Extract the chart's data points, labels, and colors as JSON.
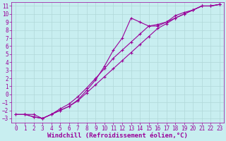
{
  "title": "",
  "xlabel": "Windchill (Refroidissement éolien,°C)",
  "ylabel": "",
  "bg_color": "#c8eef0",
  "grid_color": "#b0d8d8",
  "line_color": "#990099",
  "xlim": [
    -0.5,
    23.5
  ],
  "ylim": [
    -3.5,
    11.5
  ],
  "yticks": [
    -3,
    -2,
    -1,
    0,
    1,
    2,
    3,
    4,
    5,
    6,
    7,
    8,
    9,
    10,
    11
  ],
  "xticks": [
    0,
    1,
    2,
    3,
    4,
    5,
    6,
    7,
    8,
    9,
    10,
    11,
    12,
    13,
    14,
    15,
    16,
    17,
    18,
    19,
    20,
    21,
    22,
    23
  ],
  "line1_x": [
    0,
    1,
    2,
    3,
    4,
    5,
    6,
    7,
    8,
    9,
    10,
    11,
    12,
    13,
    14,
    15,
    16,
    17,
    18,
    19,
    20,
    21,
    22,
    23
  ],
  "line1_y": [
    -2.5,
    -2.5,
    -2.8,
    -3.0,
    -2.5,
    -2.0,
    -1.5,
    -0.8,
    0.2,
    1.2,
    2.2,
    3.2,
    4.2,
    5.2,
    6.2,
    7.2,
    8.2,
    8.8,
    9.5,
    10.0,
    10.5,
    11.0,
    11.0,
    11.2
  ],
  "line2_x": [
    1,
    2,
    3,
    4,
    5,
    6,
    7,
    8,
    9,
    10,
    11,
    12,
    13,
    14,
    15,
    16,
    17,
    18,
    19,
    20,
    21,
    22,
    23
  ],
  "line2_y": [
    -2.5,
    -2.8,
    -3.0,
    -2.5,
    -2.0,
    -1.5,
    -0.7,
    0.5,
    1.8,
    3.5,
    5.5,
    7.0,
    9.5,
    9.0,
    8.5,
    8.5,
    9.0,
    9.5,
    10.0,
    10.5,
    11.0,
    11.0,
    11.2
  ],
  "line3_x": [
    0,
    1,
    2,
    3,
    4,
    5,
    6,
    7,
    8,
    9,
    10,
    11,
    12,
    13,
    14,
    15,
    16,
    17,
    18,
    19,
    20,
    21,
    22,
    23
  ],
  "line3_y": [
    -2.5,
    -2.5,
    -2.5,
    -3.0,
    -2.5,
    -1.8,
    -1.2,
    -0.3,
    0.8,
    2.0,
    3.2,
    4.5,
    5.5,
    6.5,
    7.5,
    8.5,
    8.7,
    9.0,
    9.8,
    10.2,
    10.5,
    11.0,
    11.0,
    11.2
  ],
  "marker": "+",
  "markersize": 3.5,
  "linewidth": 0.8,
  "xlabel_fontsize": 6.5,
  "tick_fontsize": 5.5
}
